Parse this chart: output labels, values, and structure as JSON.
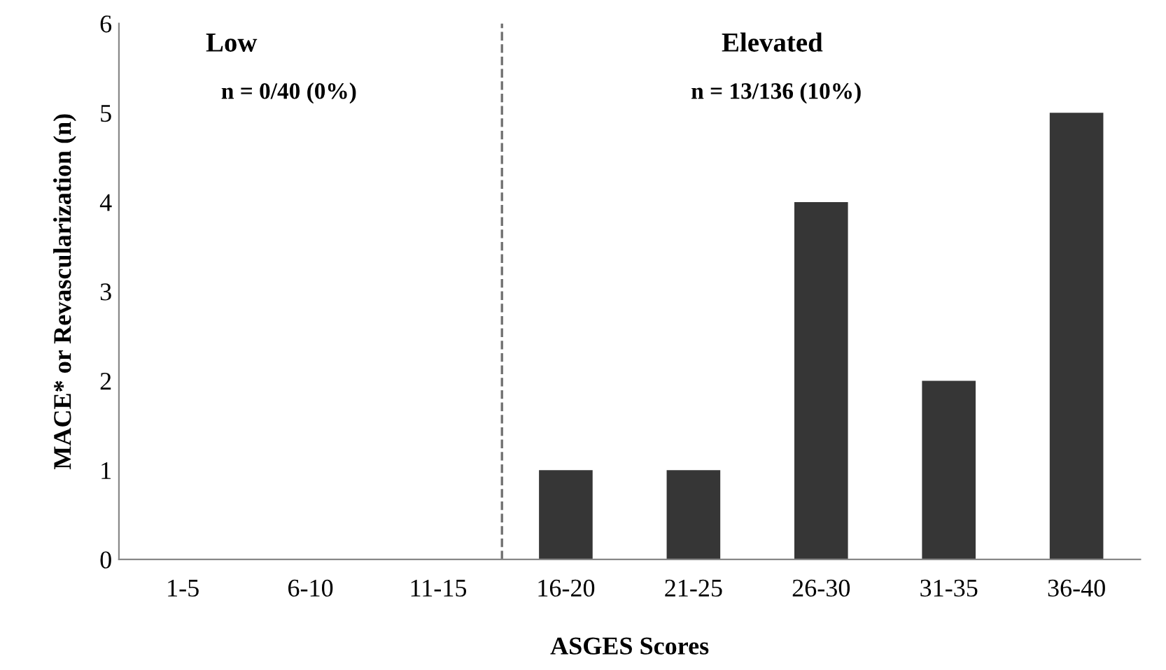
{
  "chart_data": {
    "type": "bar",
    "xlabel": "ASGES Scores",
    "ylabel": "MACE* or Revascularization (n)",
    "categories": [
      "1-5",
      "6-10",
      "11-15",
      "16-20",
      "21-25",
      "26-30",
      "31-35",
      "36-40"
    ],
    "values": [
      0,
      0,
      0,
      1,
      1,
      4,
      2,
      5
    ],
    "color": "#363636",
    "ylim": [
      0,
      6
    ],
    "yticks": [
      0,
      1,
      2,
      3,
      4,
      5,
      6
    ],
    "grid": false,
    "annotations": [
      "Low",
      "n = 0/40 (0%)",
      "Elevated",
      "n = 13/136 (10%)"
    ]
  }
}
